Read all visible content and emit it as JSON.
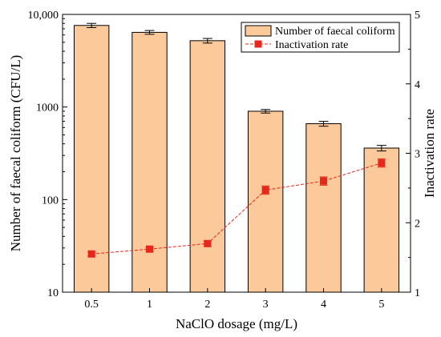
{
  "chart_data": {
    "type": "bar",
    "categories": [
      "0.5",
      "1",
      "2",
      "3",
      "4",
      "5"
    ],
    "xlabel": "NaClO dosage (mg/L)",
    "series": [
      {
        "name": "Number of faecal coliform",
        "type": "bar",
        "axis": "left",
        "values": [
          7600,
          6400,
          5200,
          900,
          660,
          360
        ],
        "errors": [
          400,
          300,
          300,
          40,
          40,
          25
        ],
        "color": "#fbc99a"
      },
      {
        "name": "Inactivation rate",
        "type": "line",
        "axis": "right",
        "values": [
          1.55,
          1.62,
          1.7,
          2.47,
          2.6,
          2.86
        ],
        "errors": [
          0.03,
          0.03,
          0.04,
          0.06,
          0.06,
          0.06
        ],
        "color": "#e8271b"
      }
    ],
    "y_left": {
      "label": "Number of faecal coliform (CFU/L)",
      "scale": "log",
      "range": [
        10,
        10000
      ],
      "ticks": [
        10,
        100,
        1000,
        10000
      ],
      "tick_labels": [
        "10",
        "100",
        "1000",
        "10,000"
      ]
    },
    "y_right": {
      "label": "Inactivation rate",
      "scale": "linear",
      "range": [
        1,
        5
      ],
      "ticks": [
        1,
        2,
        3,
        4,
        5
      ],
      "tick_labels": [
        "1",
        "2",
        "3",
        "4",
        "5"
      ]
    },
    "legend": {
      "placement": "top-right",
      "entries": [
        "Number of faecal coliform",
        "Inactivation rate"
      ]
    },
    "grid": false
  }
}
